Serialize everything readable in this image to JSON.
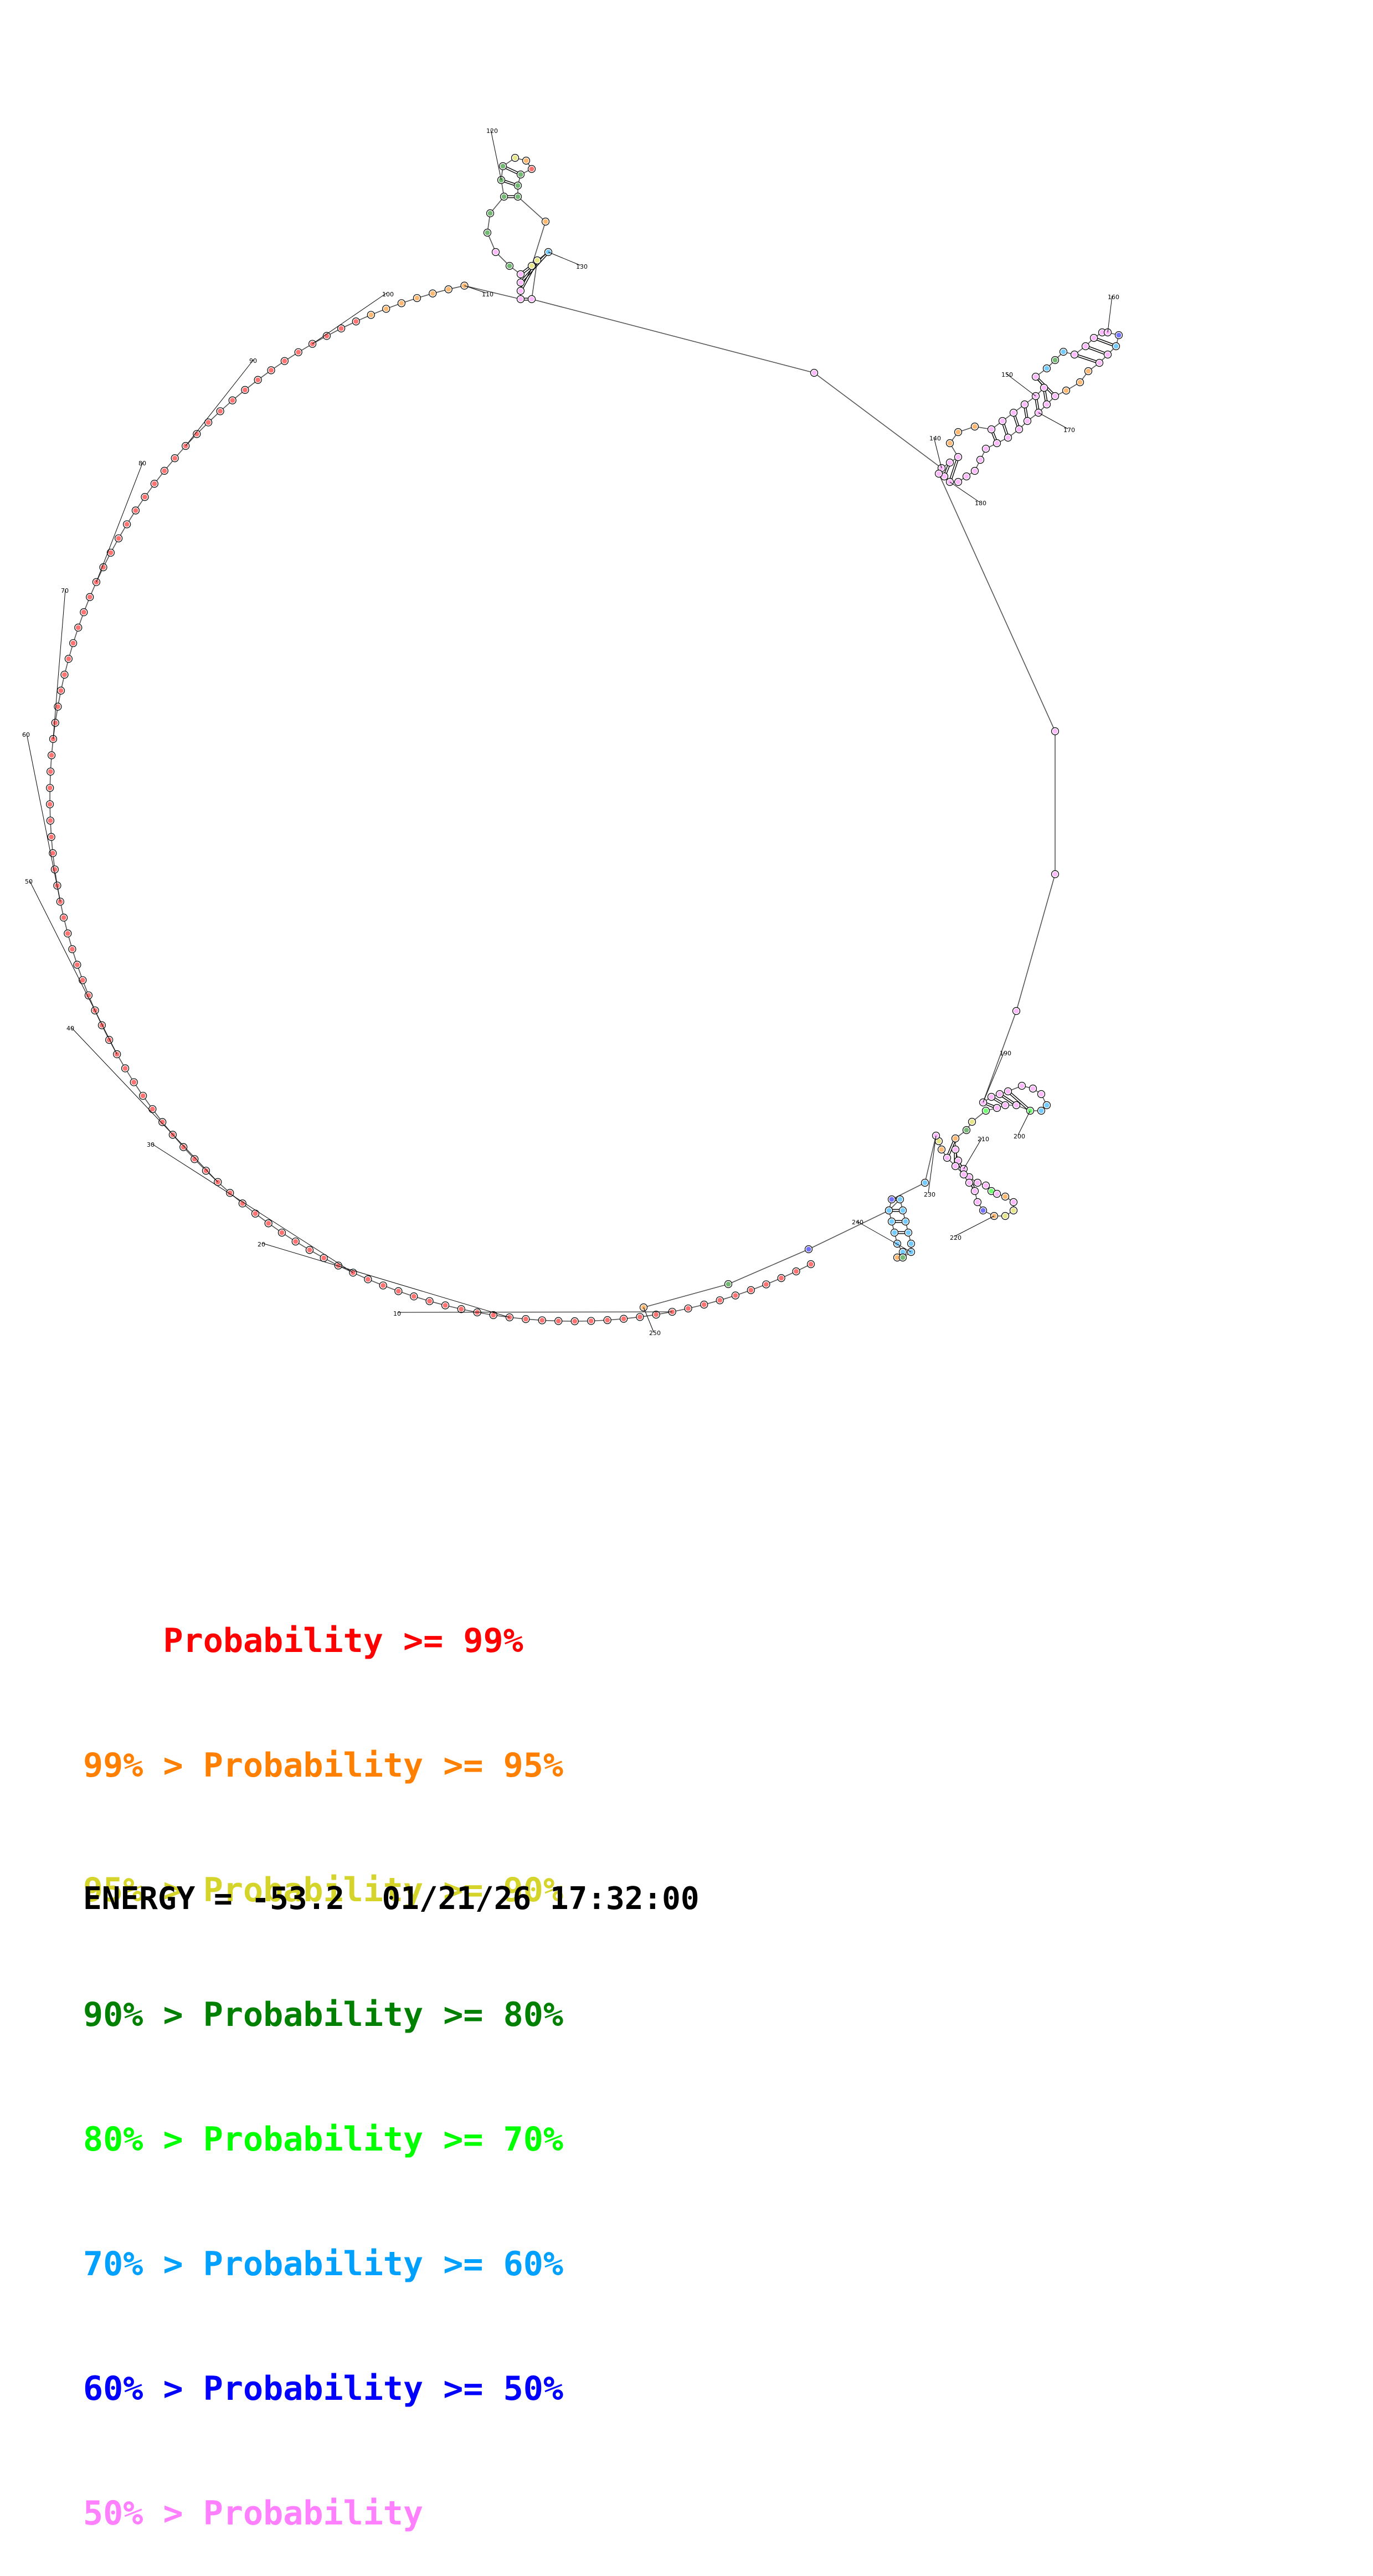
{
  "diagram": {
    "type": "rna-secondary-structure",
    "sequence_length": 250,
    "position_labels": [
      10,
      20,
      30,
      40,
      50,
      60,
      70,
      80,
      90,
      100,
      110,
      120,
      130,
      140,
      150,
      160,
      170,
      180,
      190,
      200,
      210,
      220,
      230,
      240,
      250
    ],
    "stems": [
      {
        "name": "hairpin-120",
        "pairs": [
          [
            111,
            132
          ],
          [
            112,
            131
          ],
          [
            113,
            130
          ],
          [
            114,
            129
          ],
          [
            119,
            127
          ],
          [
            120,
            126
          ],
          [
            121,
            125
          ]
        ]
      },
      {
        "name": "hairpin-160",
        "pairs": [
          [
            140,
            182
          ],
          [
            141,
            181
          ],
          [
            142,
            180
          ],
          [
            146,
            174
          ],
          [
            147,
            173
          ],
          [
            148,
            172
          ],
          [
            149,
            171
          ],
          [
            150,
            170
          ],
          [
            151,
            169
          ],
          [
            152,
            168
          ],
          [
            156,
            164
          ],
          [
            157,
            163
          ],
          [
            158,
            162
          ]
        ]
      },
      {
        "name": "hairpin-200",
        "pairs": [
          [
            191,
            203
          ],
          [
            192,
            202
          ],
          [
            193,
            201
          ],
          [
            194,
            200
          ]
        ]
      },
      {
        "name": "hairpin-220",
        "pairs": [
          [
            207,
            227
          ],
          [
            208,
            226
          ],
          [
            209,
            225
          ],
          [
            210,
            224
          ],
          [
            211,
            223
          ]
        ]
      },
      {
        "name": "hairpin-240",
        "pairs": [
          [
            232,
            245
          ],
          [
            233,
            244
          ],
          [
            234,
            243
          ],
          [
            235,
            242
          ]
        ]
      }
    ],
    "colors": {
      "p99": "#ff0000",
      "p95": "#ff8000",
      "p90": "#d4d42a",
      "p80": "#008000",
      "p70": "#00ff00",
      "p60": "#00a0ff",
      "p50": "#0000ff",
      "plow": "#ff80ff"
    }
  },
  "legend": [
    {
      "prefix": "    ",
      "label": "Probability >= 99%",
      "color": "#ff0000"
    },
    {
      "prefix": "99% > ",
      "label": "Probability >= 95%",
      "color": "#ff8000"
    },
    {
      "prefix": "95% > ",
      "label": "Probability >= 90%",
      "color": "#d4d42a"
    },
    {
      "prefix": "90% > ",
      "label": "Probability >= 80%",
      "color": "#008000"
    },
    {
      "prefix": "80% > ",
      "label": "Probability >= 70%",
      "color": "#00ff00"
    },
    {
      "prefix": "70% > ",
      "label": "Probability >= 60%",
      "color": "#00a0ff"
    },
    {
      "prefix": "60% > ",
      "label": "Probability >= 50%",
      "color": "#0000ff"
    },
    {
      "prefix": "50% > ",
      "label": "Probability",
      "color": "#ff80ff"
    }
  ],
  "footer": {
    "energy_label": "ENERGY = ",
    "energy_value": "-53.2",
    "datetime": "01/21/26 17:32:00"
  }
}
